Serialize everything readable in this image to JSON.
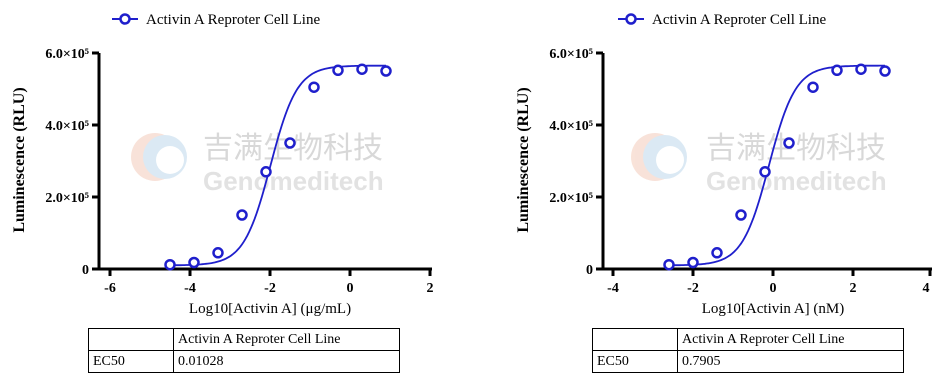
{
  "chart_data": [
    {
      "type": "scatter",
      "fit": "four-parameter logistic",
      "legend": {
        "label": "Activin A Reprоter Cell Line",
        "placement": "top-left"
      },
      "xlabel": "Log10[Activin A] (μg/mL)",
      "ylabel": "Luminescence (RLU)",
      "xlim": [
        -6,
        2
      ],
      "ylim": [
        0,
        600000
      ],
      "x_ticks": [
        "-6",
        "-4",
        "-2",
        "0",
        "2"
      ],
      "y_ticks": [
        "0",
        "2.0×10⁵",
        "4.0×10⁵",
        "6.0×10⁵"
      ],
      "color": "#1f1fcc",
      "series": [
        {
          "name": "Activin A Reproter Cell Line",
          "x": [
            -4.5,
            -3.9,
            -3.3,
            -2.7,
            -2.1,
            -1.5,
            -0.9,
            -0.3,
            0.3,
            0.9
          ],
          "y": [
            12000,
            18000,
            45000,
            150000,
            270000,
            350000,
            505000,
            552000,
            555000,
            550000
          ]
        }
      ],
      "fit_params": {
        "bottom": 10000,
        "top": 565000,
        "log_ec50": -1.988,
        "hill": 0.9
      },
      "table": {
        "header": [
          "",
          "Activin A Reproter Cell Line"
        ],
        "rows": [
          [
            "EC50",
            "0.01028"
          ]
        ]
      }
    },
    {
      "type": "scatter",
      "fit": "four-parameter logistic",
      "legend": {
        "label": "Activin A Reproter Cell Line",
        "placement": "top-left"
      },
      "xlabel": "Log10[Activin A] (nM)",
      "ylabel": "Luminescence (RLU)",
      "xlim": [
        -4,
        4
      ],
      "ylim": [
        0,
        600000
      ],
      "x_ticks": [
        "-4",
        "-2",
        "0",
        "2",
        "4"
      ],
      "y_ticks": [
        "0",
        "2.0×10⁵",
        "4.0×10⁵",
        "6.0×10⁵"
      ],
      "color": "#1f1fcc",
      "series": [
        {
          "name": "Activin A Reproter Cell Line",
          "x": [
            -2.6,
            -2.0,
            -1.4,
            -0.8,
            -0.2,
            0.4,
            1.0,
            1.6,
            2.2,
            2.8
          ],
          "y": [
            12000,
            18000,
            45000,
            150000,
            270000,
            350000,
            505000,
            552000,
            555000,
            550000
          ]
        }
      ],
      "fit_params": {
        "bottom": 10000,
        "top": 565000,
        "log_ec50": -0.102,
        "hill": 0.9
      },
      "table": {
        "header": [
          "",
          "Activin A Reproter Cell Line"
        ],
        "rows": [
          [
            "EC50",
            "0.7905"
          ]
        ]
      }
    }
  ],
  "watermark": {
    "cn": "吉满生物科技",
    "en": "Genomeditech"
  }
}
